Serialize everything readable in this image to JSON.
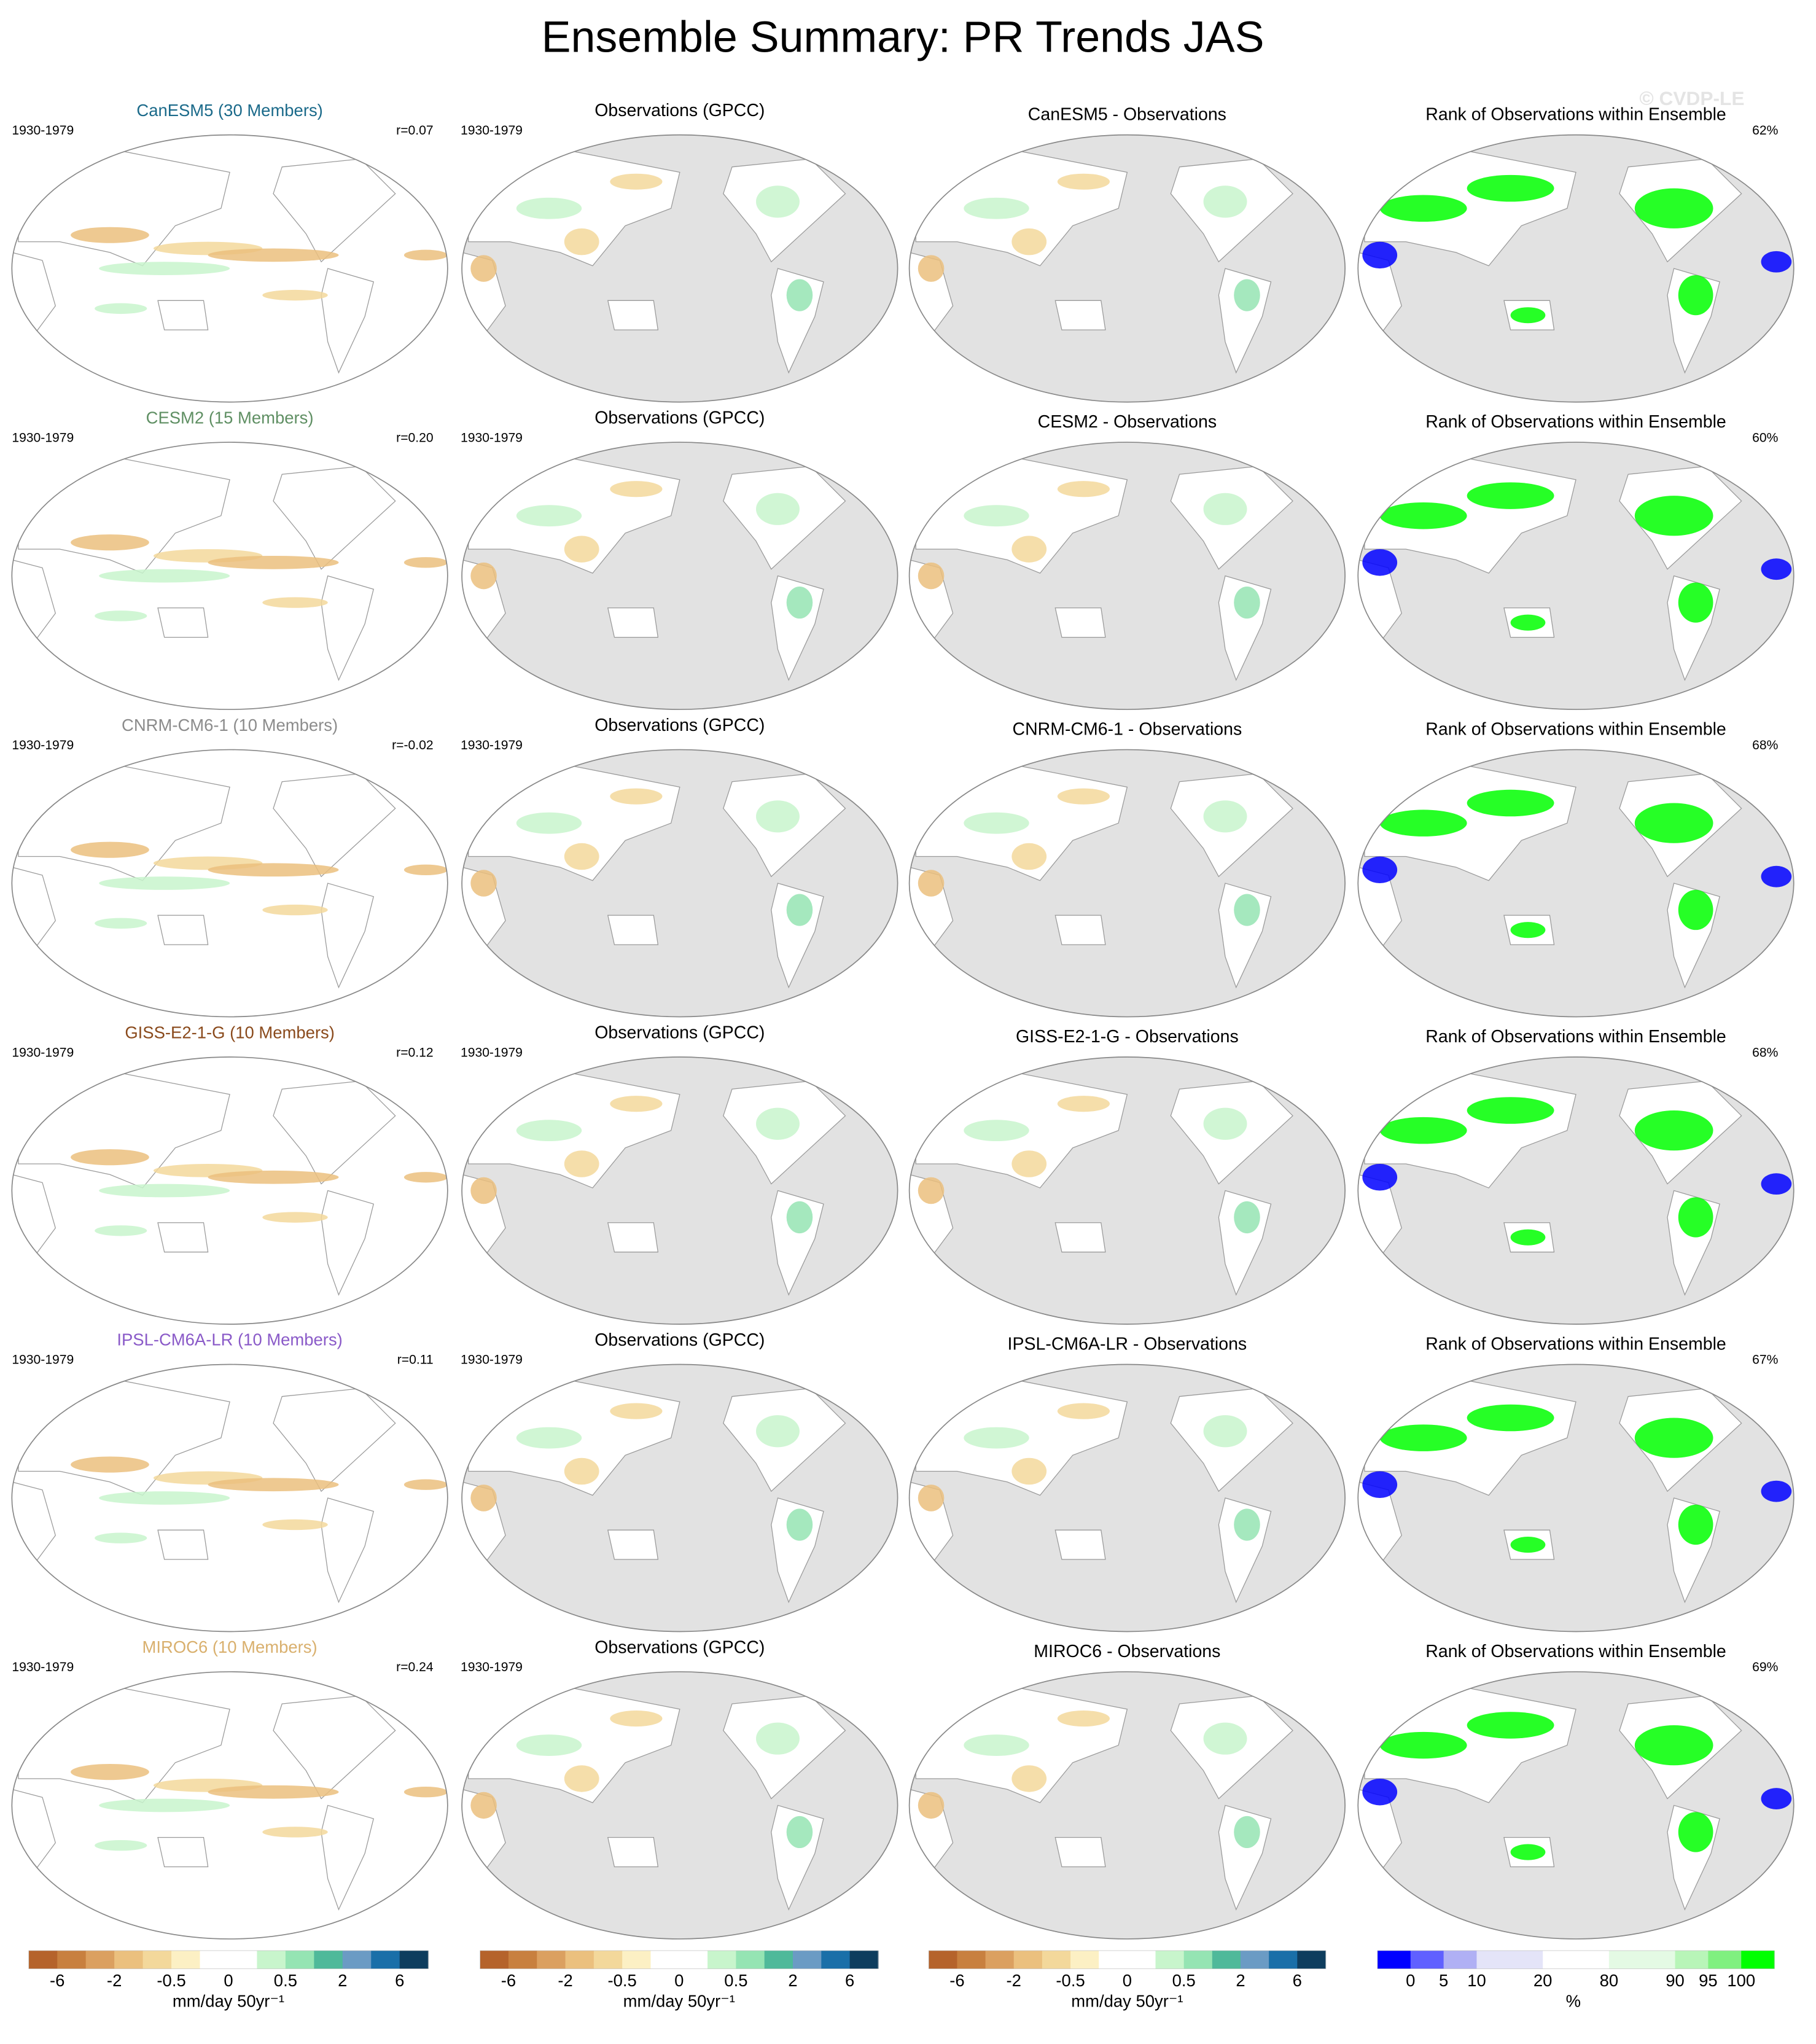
{
  "title": "Ensemble Summary: PR Trends JAS",
  "watermark": "© CVDP-LE",
  "rows": [
    {
      "model_title": "CanESM5 (30 Members)",
      "title_color": "#1b6a8a",
      "period": "1930-1979",
      "r": "r=0.07",
      "obs_title": "Observations (GPCC)",
      "obs_period": "1930-1979",
      "diff_title": "CanESM5 - Observations",
      "rank_title": "Rank of Observations within Ensemble",
      "rank_pct": "62%"
    },
    {
      "model_title": "CESM2 (15 Members)",
      "title_color": "#5f8f63",
      "period": "1930-1979",
      "r": "r=0.20",
      "obs_title": "Observations (GPCC)",
      "obs_period": "1930-1979",
      "diff_title": "CESM2 - Observations",
      "rank_title": "Rank of Observations within Ensemble",
      "rank_pct": "60%"
    },
    {
      "model_title": "CNRM-CM6-1 (10 Members)",
      "title_color": "#8c8c8c",
      "period": "1930-1979",
      "r": "r=-0.02",
      "obs_title": "Observations (GPCC)",
      "obs_period": "1930-1979",
      "diff_title": "CNRM-CM6-1 - Observations",
      "rank_title": "Rank of Observations within Ensemble",
      "rank_pct": "68%"
    },
    {
      "model_title": "GISS-E2-1-G (10 Members)",
      "title_color": "#8a4a1c",
      "period": "1930-1979",
      "r": "r=0.12",
      "obs_title": "Observations (GPCC)",
      "obs_period": "1930-1979",
      "diff_title": "GISS-E2-1-G - Observations",
      "rank_title": "Rank of Observations within Ensemble",
      "rank_pct": "68%"
    },
    {
      "model_title": "IPSL-CM6A-LR (10 Members)",
      "title_color": "#8a5ac8",
      "period": "1930-1979",
      "r": "r=0.11",
      "obs_title": "Observations (GPCC)",
      "obs_period": "1930-1979",
      "diff_title": "IPSL-CM6A-LR - Observations",
      "rank_title": "Rank of Observations within Ensemble",
      "rank_pct": "67%"
    },
    {
      "model_title": "MIROC6 (10 Members)",
      "title_color": "#d9b06e",
      "period": "1930-1979",
      "r": "r=0.24",
      "obs_title": "Observations (GPCC)",
      "obs_period": "1930-1979",
      "diff_title": "MIROC6 - Observations",
      "rank_title": "Rank of Observations within Ensemble",
      "rank_pct": "69%"
    }
  ],
  "colorbars": [
    {
      "colors": [
        "#b5632b",
        "#c8803f",
        "#dba060",
        "#ebc07e",
        "#f3d89b",
        "#fcf0c4",
        "#ffffff",
        "#ffffff",
        "#c8f5cc",
        "#95e4b3",
        "#4fb99a",
        "#6b9bc4",
        "#1a6fa8",
        "#0e3d5e"
      ],
      "labels": [
        "-6",
        "-2",
        "-0.5",
        "0",
        "0.5",
        "2",
        "6"
      ],
      "units": "mm/day 50yr⁻¹"
    },
    {
      "colors": [
        "#b5632b",
        "#c8803f",
        "#dba060",
        "#ebc07e",
        "#f3d89b",
        "#fcf0c4",
        "#ffffff",
        "#ffffff",
        "#c8f5cc",
        "#95e4b3",
        "#4fb99a",
        "#6b9bc4",
        "#1a6fa8",
        "#0e3d5e"
      ],
      "labels": [
        "-6",
        "-2",
        "-0.5",
        "0",
        "0.5",
        "2",
        "6"
      ],
      "units": "mm/day 50yr⁻¹"
    },
    {
      "colors": [
        "#b5632b",
        "#c8803f",
        "#dba060",
        "#ebc07e",
        "#f3d89b",
        "#fcf0c4",
        "#ffffff",
        "#ffffff",
        "#c8f5cc",
        "#95e4b3",
        "#4fb99a",
        "#6b9bc4",
        "#1a6fa8",
        "#0e3d5e"
      ],
      "labels": [
        "-6",
        "-2",
        "-0.5",
        "0",
        "0.5",
        "2",
        "6"
      ],
      "units": "mm/day 50yr⁻¹"
    },
    {
      "colors": [
        "#0000ff",
        "#6060ff",
        "#b0b0f4",
        "#e4e4f8",
        "#ffffff",
        "#e4fae4",
        "#b8f5b8",
        "#80f080",
        "#00ff00"
      ],
      "labels": [
        "0",
        "5",
        "10",
        "20",
        "80",
        "90",
        "95",
        "100"
      ],
      "units": "%"
    }
  ]
}
